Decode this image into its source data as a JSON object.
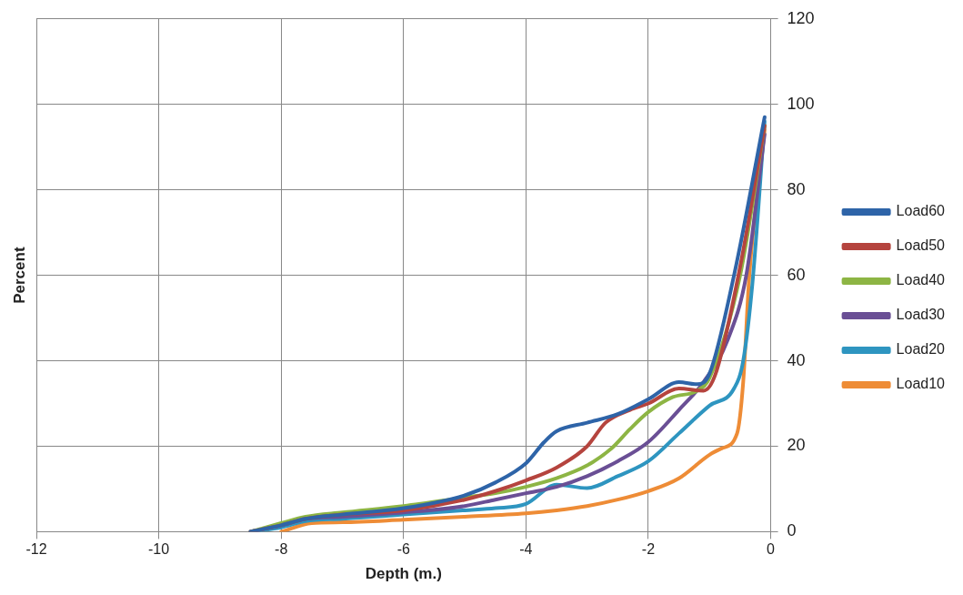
{
  "chart_data": {
    "type": "line",
    "xlabel": "Depth (m.)",
    "ylabel": "Percent",
    "xlim": [
      -12,
      0
    ],
    "xticks": [
      -12,
      -10,
      -8,
      -6,
      -4,
      -2,
      0
    ],
    "ylim": [
      0,
      120
    ],
    "yticks": [
      0,
      20,
      40,
      60,
      80,
      100,
      120
    ],
    "grid": true,
    "legend": "right",
    "marker": "none",
    "series": [
      {
        "name": "Load60",
        "color": "#2e64a8",
        "x": [
          -8.5,
          -8,
          -7.6,
          -7,
          -6,
          -5,
          -4.5,
          -4,
          -3.7,
          -3.5,
          -3,
          -2.5,
          -2,
          -1.5,
          -1.2,
          -1,
          -0.6,
          -0.1
        ],
        "values": [
          0,
          1.5,
          3,
          4,
          5.5,
          8.5,
          11.5,
          16,
          21,
          23.5,
          25.5,
          27.5,
          31,
          35,
          34.5,
          37,
          60,
          97
        ]
      },
      {
        "name": "Load50",
        "color": "#b5443e",
        "x": [
          -8.5,
          -8,
          -7.6,
          -7,
          -6,
          -5,
          -4.5,
          -4,
          -3.5,
          -3,
          -2.7,
          -2.3,
          -2,
          -1.5,
          -1.1,
          -0.9,
          -0.5,
          -0.1
        ],
        "values": [
          0,
          1.5,
          3,
          4,
          5,
          7.5,
          9.5,
          12,
          15,
          20,
          25.5,
          28.5,
          30,
          33.5,
          33,
          37,
          62,
          95
        ]
      },
      {
        "name": "Load40",
        "color": "#8db544",
        "x": [
          -8.5,
          -8,
          -7.6,
          -7,
          -6,
          -5,
          -4.5,
          -4,
          -3.5,
          -3,
          -2.6,
          -2.3,
          -2,
          -1.6,
          -1.2,
          -1,
          -0.5,
          -0.1
        ],
        "values": [
          0,
          2,
          3.5,
          4.5,
          6,
          8,
          9,
          10.5,
          12.5,
          15.5,
          19.5,
          24,
          28,
          31.5,
          33,
          36,
          60,
          95
        ]
      },
      {
        "name": "Load30",
        "color": "#6a4f95",
        "x": [
          -8.5,
          -8,
          -7.6,
          -7,
          -6,
          -5,
          -4.5,
          -4,
          -3.5,
          -3,
          -2.5,
          -2,
          -1.5,
          -1.1,
          -0.7,
          -0.4,
          -0.1
        ],
        "values": [
          0,
          1.5,
          3,
          3.5,
          4.5,
          6,
          7.5,
          9,
          10.5,
          13,
          16.5,
          21,
          28.5,
          35,
          45,
          60,
          93
        ]
      },
      {
        "name": "Load20",
        "color": "#2e95c0",
        "x": [
          -8.5,
          -8,
          -7.6,
          -7,
          -6,
          -5,
          -4.5,
          -4,
          -3.5,
          -3,
          -2.5,
          -2,
          -1.5,
          -1,
          -0.6,
          -0.45,
          -0.3,
          -0.1
        ],
        "values": [
          0,
          1,
          2.5,
          3,
          4,
          5,
          5.5,
          6.5,
          11,
          10.2,
          13,
          16.5,
          23,
          29.5,
          33.5,
          40,
          58,
          96
        ]
      },
      {
        "name": "Load10",
        "color": "#ee8c36",
        "x": [
          -8,
          -7.5,
          -7,
          -6,
          -5,
          -4,
          -3.5,
          -3,
          -2.5,
          -2,
          -1.5,
          -1,
          -0.8,
          -0.55,
          -0.45,
          -0.35,
          -0.1
        ],
        "values": [
          0,
          2,
          2.2,
          2.8,
          3.5,
          4.3,
          5,
          6,
          7.5,
          9.5,
          12.5,
          18,
          19.5,
          23,
          35,
          60,
          94
        ]
      }
    ]
  }
}
